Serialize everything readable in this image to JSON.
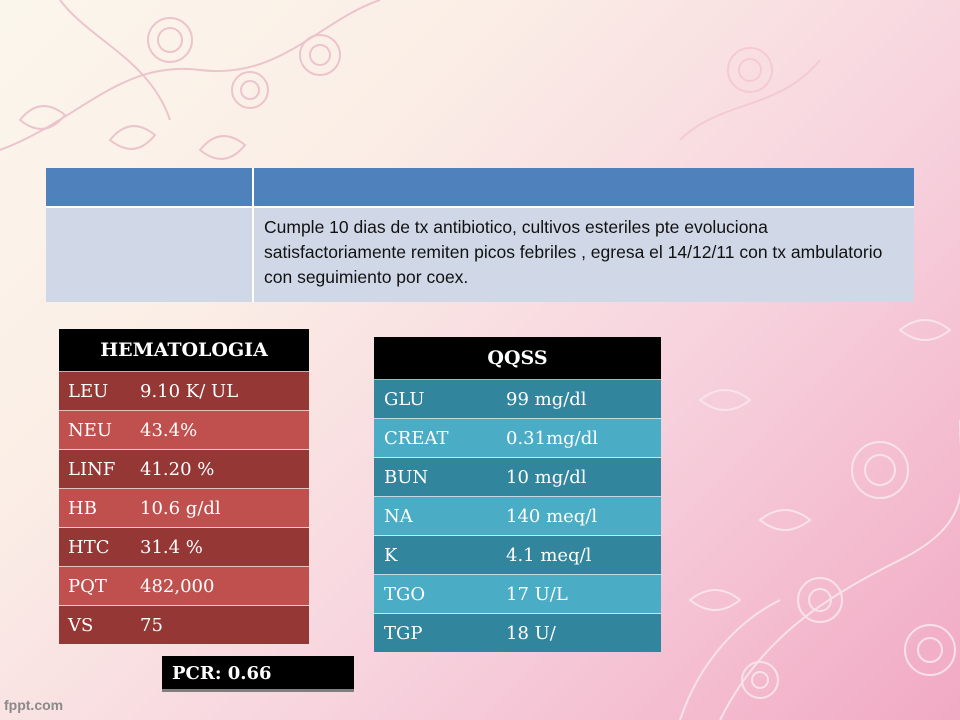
{
  "summary": {
    "text": "Cumple 10 dias de tx antibiotico, cultivos esteriles  pte evoluciona satisfactoriamente remiten picos febriles , egresa el 14/12/11 con tx ambulatorio con seguimiento por coex."
  },
  "hematologia": {
    "title": "HEMATOLOGIA",
    "rows": [
      {
        "key": "LEU",
        "value": "9.10 K/ UL"
      },
      {
        "key": "NEU",
        "value": "43.4%"
      },
      {
        "key": "LINF",
        "value": "41.20 %"
      },
      {
        "key": "HB",
        "value": "10.6  g/dl"
      },
      {
        "key": "HTC",
        "value": "31.4 %"
      },
      {
        "key": "PQT",
        "value": "482,000"
      },
      {
        "key": "VS",
        "value": "75"
      }
    ]
  },
  "qqss": {
    "title": "QQSS",
    "rows": [
      {
        "key": "GLU",
        "value": "99 mg/dl"
      },
      {
        "key": "CREAT",
        "value": "0.31mg/dl"
      },
      {
        "key": "BUN",
        "value": "10 mg/dl"
      },
      {
        "key": "NA",
        "value": "140 meq/l"
      },
      {
        "key": "K",
        "value": "4.1 meq/l"
      },
      {
        "key": "TGO",
        "value": "17 U/L"
      },
      {
        "key": "TGP",
        "value": "18 U/"
      }
    ]
  },
  "pcr": {
    "label": "PCR: 0.66"
  },
  "watermark": "fppt.com",
  "colors": {
    "header_blue": "#4f81bd",
    "body_blue": "#d0d8e8",
    "red_dark": "#953735",
    "red_light": "#c0504d",
    "teal_dark": "#31859c",
    "teal_light": "#4bacc6"
  }
}
